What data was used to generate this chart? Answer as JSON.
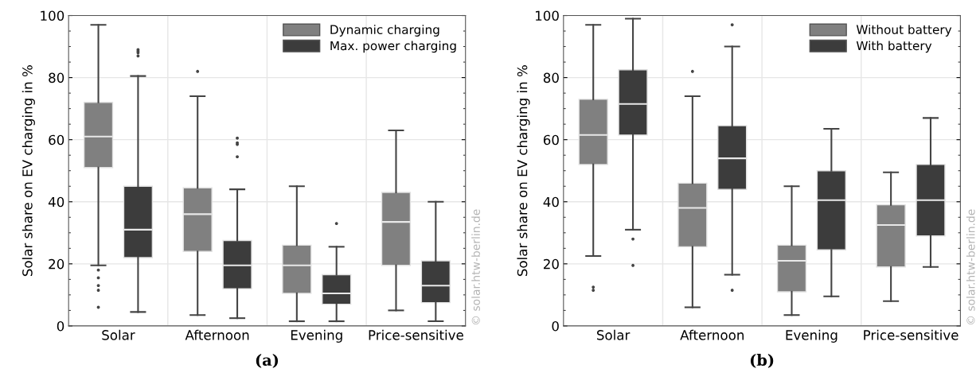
{
  "chart_data": [
    {
      "type": "box",
      "ylabel": "Solar share on EV charging in %",
      "categories": [
        "Solar",
        "Afternoon",
        "Evening",
        "Price-sensitive"
      ],
      "ylim": [
        0,
        100
      ],
      "yticks": [
        0,
        20,
        40,
        60,
        80,
        100
      ],
      "grid": true,
      "legend": "top right",
      "annotations": [
        "(a)",
        "© solar.htw-berlin.de"
      ],
      "series": [
        {
          "name": "Dynamic charging",
          "color": "#808080",
          "boxes": [
            {
              "low": 19.5,
              "q1": 51,
              "median": 61,
              "q3": 72,
              "high": 97,
              "outliers": [
                18,
                15.5,
                11.5,
                13,
                6
              ]
            },
            {
              "low": 3.5,
              "q1": 24,
              "median": 36,
              "q3": 44.5,
              "high": 74,
              "outliers": [
                82
              ]
            },
            {
              "low": 1.5,
              "q1": 10.5,
              "median": 19.5,
              "q3": 26,
              "high": 45
            },
            {
              "low": 5,
              "q1": 19.5,
              "median": 33.5,
              "q3": 43,
              "high": 63
            }
          ]
        },
        {
          "name": "Max. power charging",
          "color": "#3c3c3c",
          "boxes": [
            {
              "low": 4.5,
              "q1": 22,
              "median": 31,
              "q3": 45,
              "high": 80.5,
              "outliers": [
                87,
                88,
                88.5,
                89
              ]
            },
            {
              "low": 2.5,
              "q1": 12,
              "median": 19.5,
              "q3": 27.5,
              "high": 44,
              "outliers": [
                54.5,
                58.5,
                59,
                60.5
              ]
            },
            {
              "low": 1.5,
              "q1": 7,
              "median": 10.5,
              "q3": 16.5,
              "high": 25.5,
              "outliers": [
                33
              ]
            },
            {
              "low": 1.5,
              "q1": 7.5,
              "median": 13,
              "q3": 21,
              "high": 40
            }
          ]
        }
      ]
    },
    {
      "type": "box",
      "ylabel": "Solar share on EV charging in %",
      "categories": [
        "Solar",
        "Afternoon",
        "Evening",
        "Price-sensitive"
      ],
      "ylim": [
        0,
        100
      ],
      "yticks": [
        0,
        20,
        40,
        60,
        80,
        100
      ],
      "grid": true,
      "legend": "top right",
      "annotations": [
        "(b)",
        "© solar.htw-berlin.de"
      ],
      "series": [
        {
          "name": "Without battery",
          "color": "#808080",
          "boxes": [
            {
              "low": 22.5,
              "q1": 52,
              "median": 61.5,
              "q3": 73,
              "high": 97,
              "outliers": [
                11.5,
                12.5
              ]
            },
            {
              "low": 6,
              "q1": 25.5,
              "median": 38,
              "q3": 46,
              "high": 74,
              "outliers": [
                82
              ]
            },
            {
              "low": 3.5,
              "q1": 11,
              "median": 21,
              "q3": 26,
              "high": 45
            },
            {
              "low": 8,
              "q1": 19,
              "median": 32.5,
              "q3": 39,
              "high": 49.5
            }
          ]
        },
        {
          "name": "With battery",
          "color": "#3c3c3c",
          "boxes": [
            {
              "low": 31,
              "q1": 61.5,
              "median": 71.5,
              "q3": 82.5,
              "high": 99,
              "outliers": [
                28,
                19.5
              ]
            },
            {
              "low": 16.5,
              "q1": 44,
              "median": 54,
              "q3": 64.5,
              "high": 90,
              "outliers": [
                97,
                11.5
              ]
            },
            {
              "low": 9.5,
              "q1": 24.5,
              "median": 40.5,
              "q3": 50,
              "high": 63.5
            },
            {
              "low": 19,
              "q1": 29,
              "median": 40.5,
              "q3": 52,
              "high": 67
            }
          ]
        }
      ]
    }
  ]
}
